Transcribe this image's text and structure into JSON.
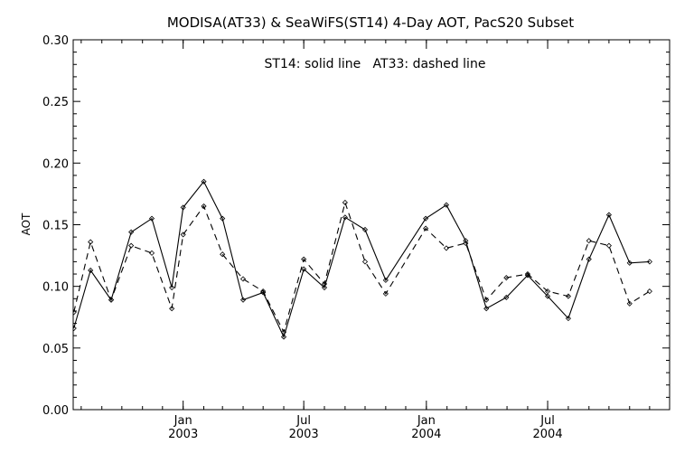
{
  "chart_data": {
    "type": "line",
    "title": "MODISA(AT33) & SeaWiFS(ST14) 4-Day AOT, PacS20 Subset",
    "annotation": "ST14: solid line   AT33: dashed line",
    "xlabel": "",
    "ylabel": "AOT",
    "ylim": [
      0.0,
      0.3
    ],
    "yticks": [
      "0.00",
      "0.05",
      "0.10",
      "0.15",
      "0.20",
      "0.25",
      "0.30"
    ],
    "xlim": [
      "2002-07-20",
      "2004-12-31"
    ],
    "xticks": [
      {
        "date": "2003-01-01",
        "month": "Jan",
        "year": "2003"
      },
      {
        "date": "2003-07-01",
        "month": "Jul",
        "year": "2003"
      },
      {
        "date": "2004-01-01",
        "month": "Jan",
        "year": "2004"
      },
      {
        "date": "2004-07-01",
        "month": "Jul",
        "year": "2004"
      }
    ],
    "grid": false,
    "series": [
      {
        "name": "ST14",
        "style": "solid",
        "color": "#000000",
        "points": [
          {
            "x": "2002-07-21",
            "y": 0.066
          },
          {
            "x": "2002-08-15",
            "y": 0.113
          },
          {
            "x": "2002-09-15",
            "y": 0.089
          },
          {
            "x": "2002-10-15",
            "y": 0.144
          },
          {
            "x": "2002-11-15",
            "y": 0.155
          },
          {
            "x": "2002-12-15",
            "y": 0.099
          },
          {
            "x": "2003-01-01",
            "y": 0.164
          },
          {
            "x": "2003-02-01",
            "y": 0.185
          },
          {
            "x": "2003-03-01",
            "y": 0.155
          },
          {
            "x": "2003-04-01",
            "y": 0.089
          },
          {
            "x": "2003-05-01",
            "y": 0.095
          },
          {
            "x": "2003-06-01",
            "y": 0.059
          },
          {
            "x": "2003-07-01",
            "y": 0.114
          },
          {
            "x": "2003-08-01",
            "y": 0.099
          },
          {
            "x": "2003-09-01",
            "y": 0.156
          },
          {
            "x": "2003-10-01",
            "y": 0.146
          },
          {
            "x": "2003-11-01",
            "y": 0.105
          },
          {
            "x": "2003-12-31",
            "y": 0.155
          },
          {
            "x": "2004-01-31",
            "y": 0.166
          },
          {
            "x": "2004-02-29",
            "y": 0.137
          },
          {
            "x": "2004-03-31",
            "y": 0.082
          },
          {
            "x": "2004-04-30",
            "y": 0.091
          },
          {
            "x": "2004-06-01",
            "y": 0.109
          },
          {
            "x": "2004-07-01",
            "y": 0.092
          },
          {
            "x": "2004-08-01",
            "y": 0.074
          },
          {
            "x": "2004-09-01",
            "y": 0.122
          },
          {
            "x": "2004-10-01",
            "y": 0.158
          },
          {
            "x": "2004-11-01",
            "y": 0.119
          },
          {
            "x": "2004-12-01",
            "y": 0.12
          }
        ]
      },
      {
        "name": "AT33",
        "style": "dashed",
        "color": "#000000",
        "points": [
          {
            "x": "2002-07-21",
            "y": 0.079
          },
          {
            "x": "2002-08-15",
            "y": 0.136
          },
          {
            "x": "2002-09-15",
            "y": 0.089
          },
          {
            "x": "2002-10-15",
            "y": 0.133
          },
          {
            "x": "2002-11-15",
            "y": 0.127
          },
          {
            "x": "2002-12-15",
            "y": 0.082
          },
          {
            "x": "2003-01-01",
            "y": 0.142
          },
          {
            "x": "2003-02-01",
            "y": 0.165
          },
          {
            "x": "2003-03-01",
            "y": 0.126
          },
          {
            "x": "2003-04-01",
            "y": 0.106
          },
          {
            "x": "2003-05-01",
            "y": 0.096
          },
          {
            "x": "2003-06-01",
            "y": 0.063
          },
          {
            "x": "2003-07-01",
            "y": 0.122
          },
          {
            "x": "2003-08-01",
            "y": 0.102
          },
          {
            "x": "2003-09-01",
            "y": 0.168
          },
          {
            "x": "2003-10-01",
            "y": 0.12
          },
          {
            "x": "2003-11-01",
            "y": 0.094
          },
          {
            "x": "2003-12-31",
            "y": 0.147
          },
          {
            "x": "2004-01-31",
            "y": 0.131
          },
          {
            "x": "2004-02-29",
            "y": 0.135
          },
          {
            "x": "2004-03-31",
            "y": 0.089
          },
          {
            "x": "2004-04-30",
            "y": 0.107
          },
          {
            "x": "2004-06-01",
            "y": 0.11
          },
          {
            "x": "2004-07-01",
            "y": 0.096
          },
          {
            "x": "2004-08-01",
            "y": 0.092
          },
          {
            "x": "2004-09-01",
            "y": 0.137
          },
          {
            "x": "2004-10-01",
            "y": 0.133
          },
          {
            "x": "2004-11-01",
            "y": 0.086
          },
          {
            "x": "2004-12-01",
            "y": 0.096
          }
        ]
      }
    ]
  }
}
